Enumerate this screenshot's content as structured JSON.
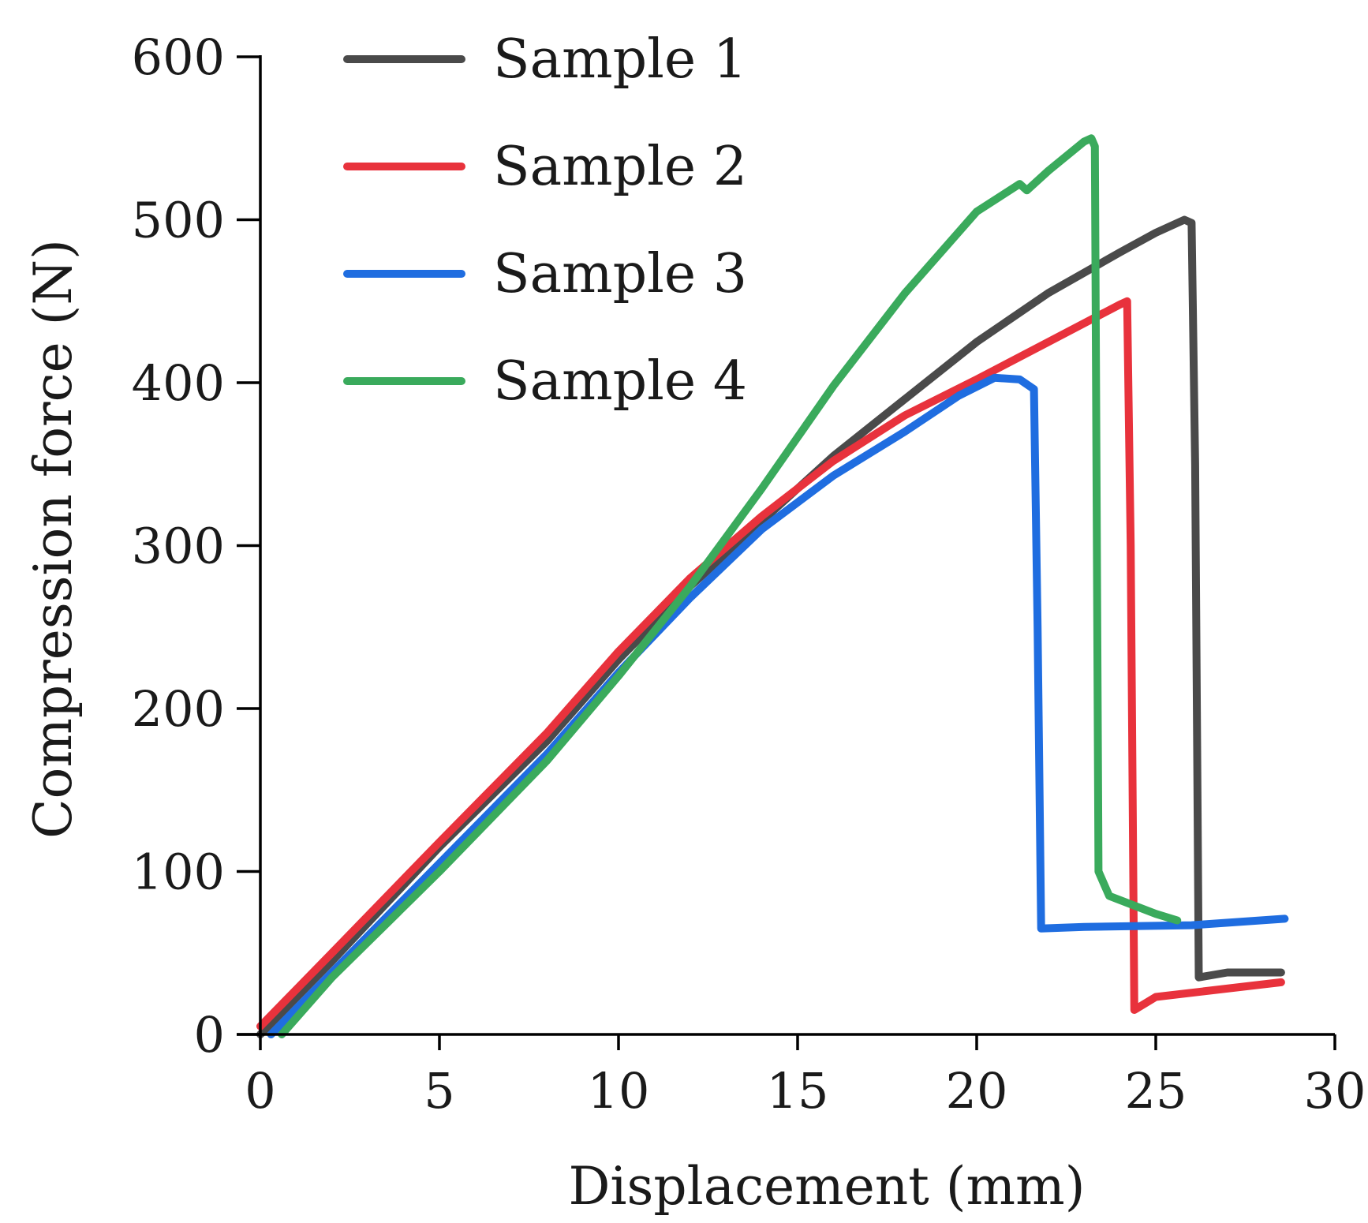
{
  "chart_data": {
    "type": "line",
    "title": "",
    "xlabel": "Displacement (mm)",
    "ylabel": "Compression force (N)",
    "xlim": [
      0,
      30
    ],
    "ylim": [
      0,
      600
    ],
    "xticks": [
      0,
      5,
      10,
      15,
      20,
      25,
      30
    ],
    "yticks": [
      0,
      100,
      200,
      300,
      400,
      500,
      600
    ],
    "grid": false,
    "legend_position": "top-left",
    "series": [
      {
        "name": "Sample 1",
        "color": "#4a4a4a",
        "points": [
          [
            0,
            0
          ],
          [
            2,
            45
          ],
          [
            5,
            115
          ],
          [
            8,
            180
          ],
          [
            10,
            230
          ],
          [
            12,
            275
          ],
          [
            14,
            315
          ],
          [
            16,
            355
          ],
          [
            18,
            390
          ],
          [
            20,
            425
          ],
          [
            22,
            455
          ],
          [
            24,
            480
          ],
          [
            25,
            492
          ],
          [
            25.8,
            500
          ],
          [
            26.0,
            498
          ],
          [
            26.1,
            350
          ],
          [
            26.2,
            35
          ],
          [
            27,
            38
          ],
          [
            28.5,
            38
          ]
        ]
      },
      {
        "name": "Sample 2",
        "color": "#e8323c",
        "points": [
          [
            0,
            5
          ],
          [
            2,
            50
          ],
          [
            5,
            118
          ],
          [
            8,
            185
          ],
          [
            10,
            235
          ],
          [
            12,
            280
          ],
          [
            14,
            318
          ],
          [
            16,
            352
          ],
          [
            18,
            380
          ],
          [
            20,
            402
          ],
          [
            22,
            425
          ],
          [
            24,
            448
          ],
          [
            24.2,
            450
          ],
          [
            24.3,
            300
          ],
          [
            24.4,
            15
          ],
          [
            25,
            23
          ],
          [
            28.5,
            32
          ]
        ]
      },
      {
        "name": "Sample 3",
        "color": "#1f6de0",
        "points": [
          [
            0.3,
            0
          ],
          [
            2,
            38
          ],
          [
            5,
            105
          ],
          [
            8,
            172
          ],
          [
            10,
            222
          ],
          [
            12,
            268
          ],
          [
            14,
            310
          ],
          [
            16,
            343
          ],
          [
            18,
            370
          ],
          [
            19.5,
            392
          ],
          [
            20.5,
            403
          ],
          [
            21.2,
            402
          ],
          [
            21.6,
            396
          ],
          [
            21.7,
            250
          ],
          [
            21.8,
            65
          ],
          [
            23,
            66
          ],
          [
            26,
            67
          ],
          [
            28.6,
            71
          ]
        ]
      },
      {
        "name": "Sample 4",
        "color": "#3aaa5c",
        "points": [
          [
            0.6,
            0
          ],
          [
            2,
            35
          ],
          [
            5,
            100
          ],
          [
            8,
            168
          ],
          [
            10,
            220
          ],
          [
            12,
            275
          ],
          [
            14,
            335
          ],
          [
            16,
            398
          ],
          [
            18,
            455
          ],
          [
            20,
            505
          ],
          [
            21.2,
            522
          ],
          [
            21.4,
            518
          ],
          [
            22,
            530
          ],
          [
            23,
            548
          ],
          [
            23.2,
            550
          ],
          [
            23.3,
            545
          ],
          [
            23.4,
            100
          ],
          [
            23.7,
            85
          ],
          [
            25,
            74
          ],
          [
            25.6,
            70
          ]
        ]
      }
    ]
  }
}
